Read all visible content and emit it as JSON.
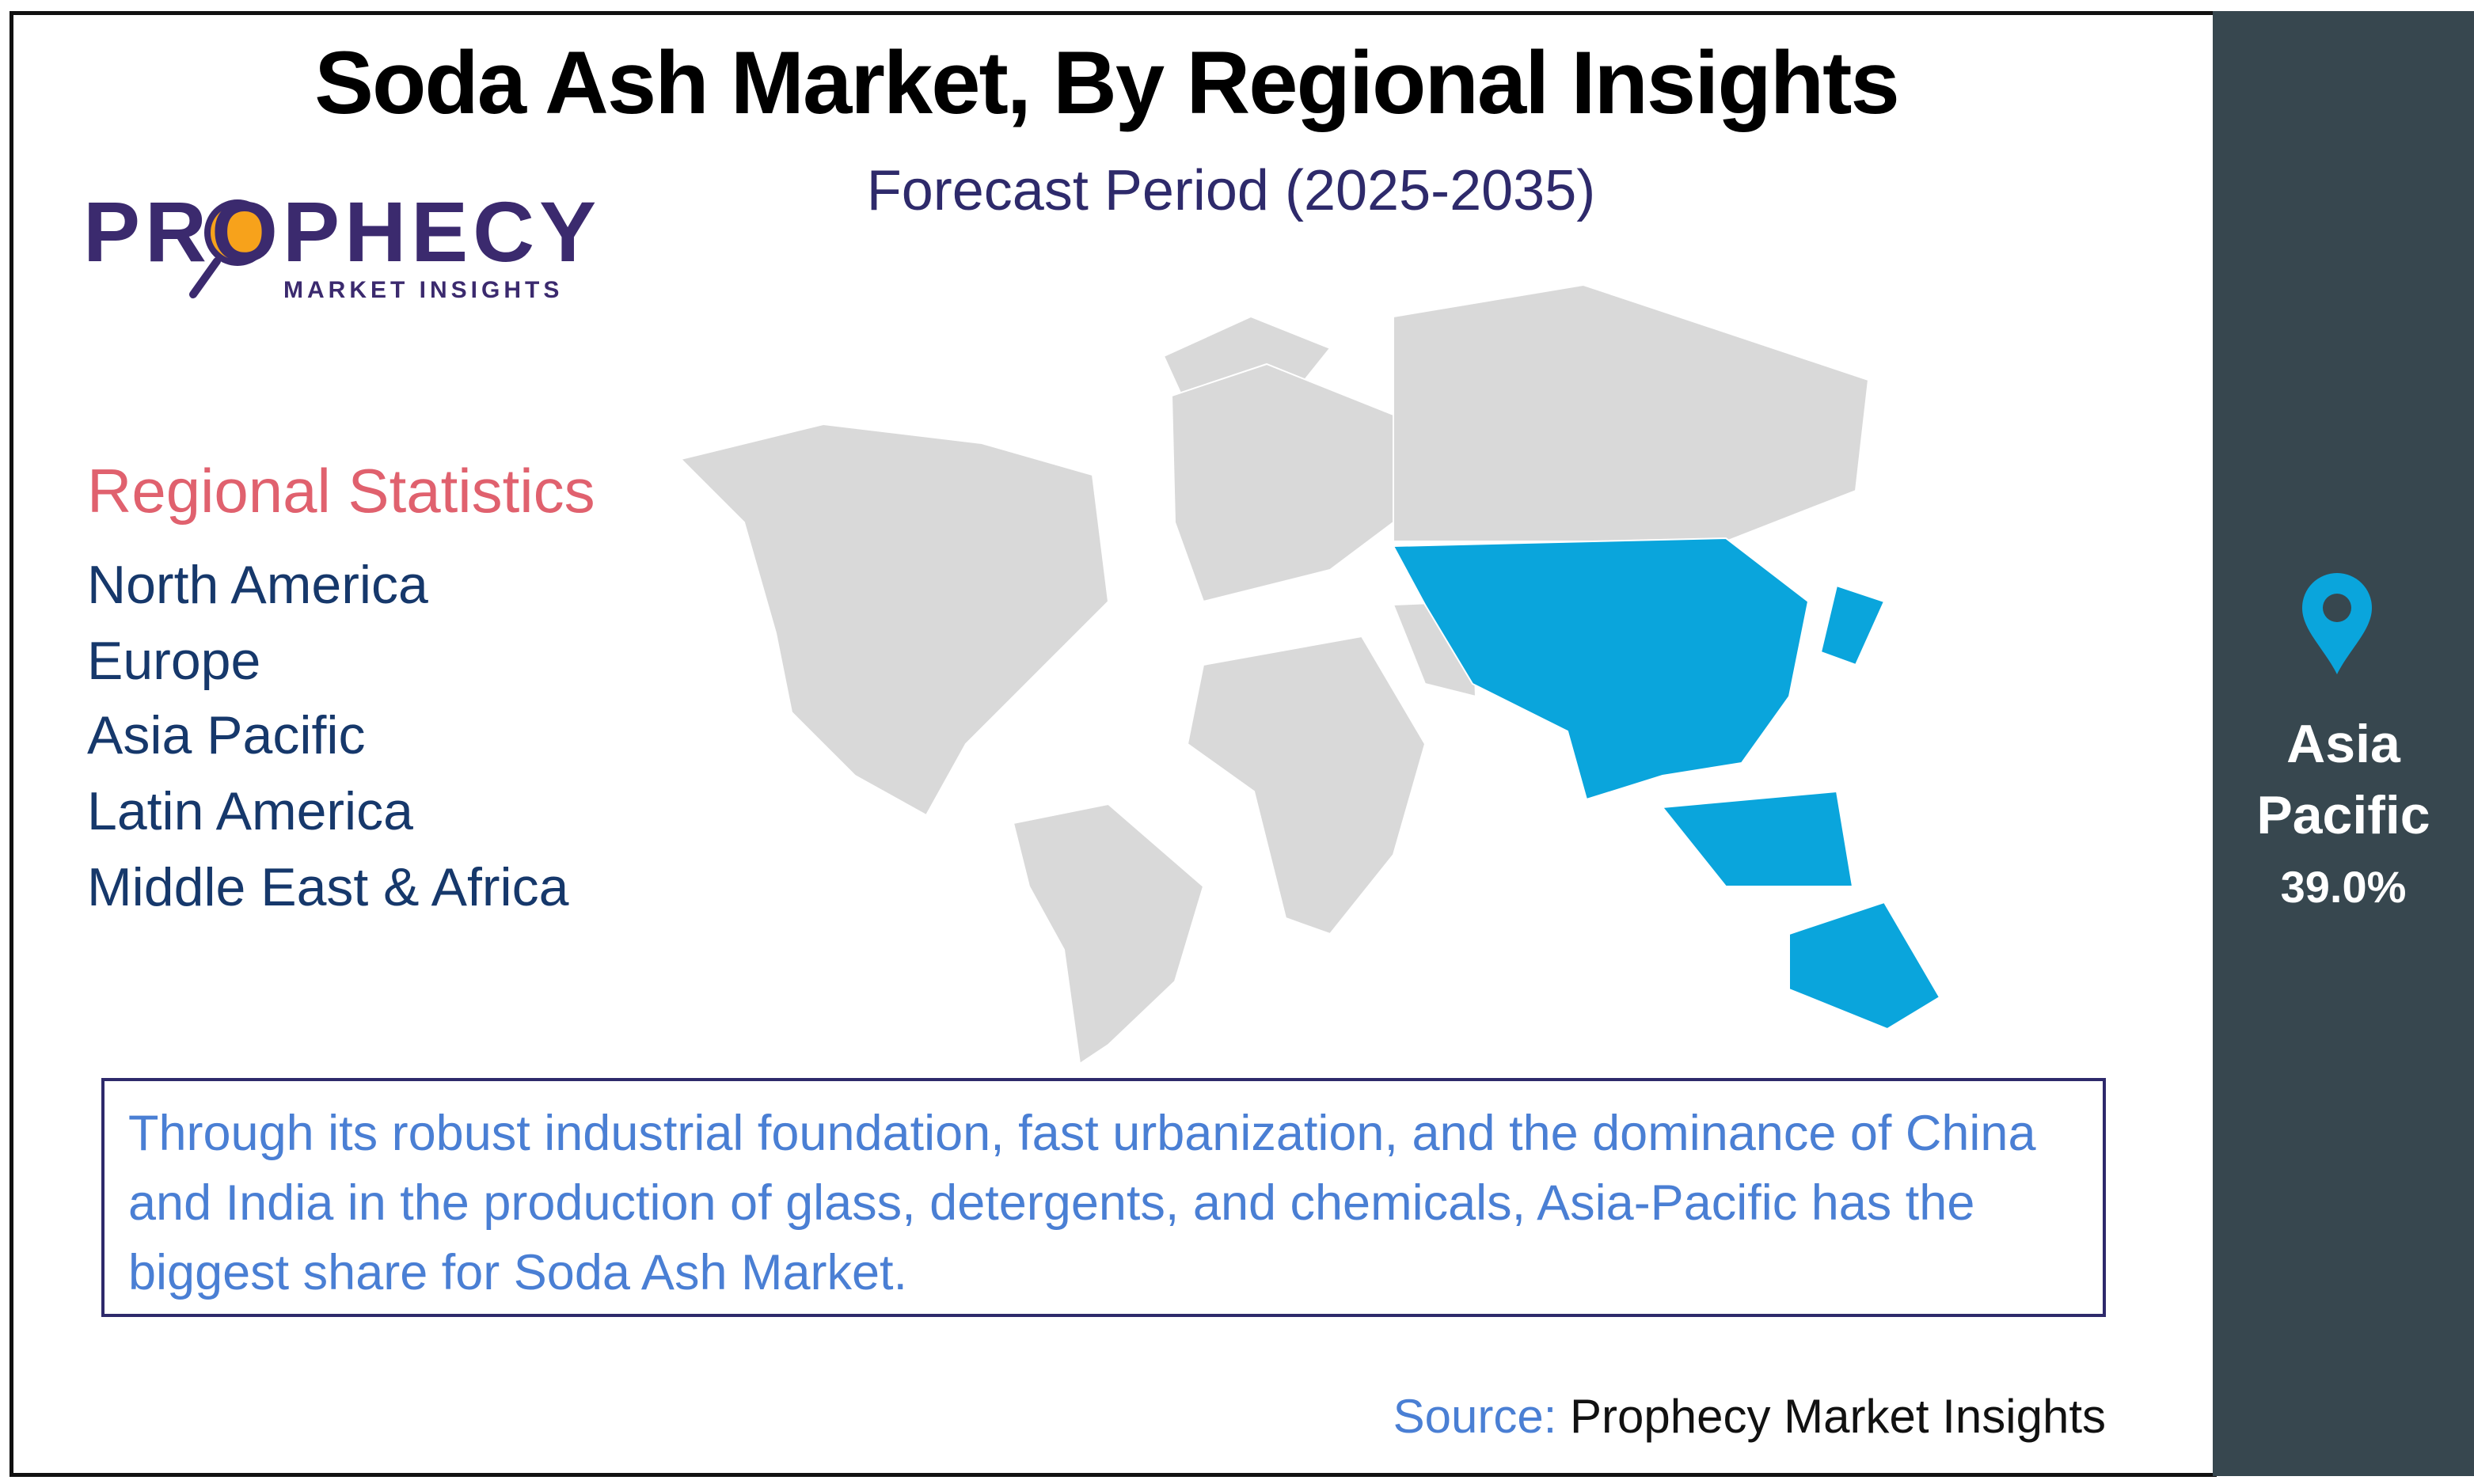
{
  "header": {
    "title": "Soda Ash Market, By Regional Insights",
    "subtitle": "Forecast Period (2025-2035)"
  },
  "logo": {
    "name": "PROPHECY",
    "tagline": "MARKET INSIGHTS"
  },
  "regional_statistics": {
    "heading": "Regional Statistics",
    "regions": [
      "North America",
      "Europe",
      "Asia Pacific",
      "Latin America",
      "Middle East & Africa"
    ]
  },
  "highlight": {
    "region": "Asia Pacific",
    "share": "39.0%"
  },
  "description": "Through its robust industrial foundation, fast urbanization, and the dominance of China and India in the production of glass, detergents, and chemicals, Asia-Pacific has the biggest share for Soda Ash Market.",
  "source": {
    "label": "Source:",
    "name": "Prophecy Market Insights"
  }
}
